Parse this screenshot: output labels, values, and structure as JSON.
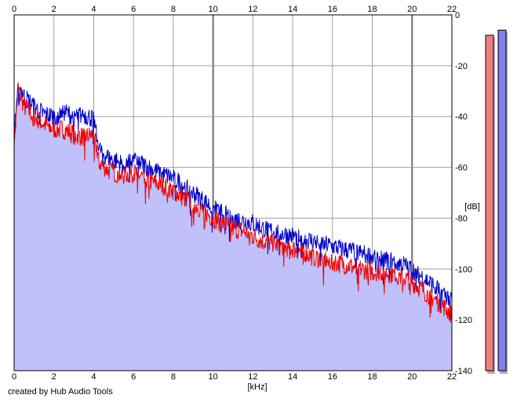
{
  "footer": {
    "credit": "created by Hub Audio Tools"
  },
  "chart_data": {
    "type": "line",
    "title": "",
    "xlabel": "[kHz]",
    "ylabel": "[dB]",
    "xlim": [
      0,
      22
    ],
    "ylim": [
      -140,
      0
    ],
    "x_ticks": [
      0,
      2,
      4,
      6,
      8,
      10,
      12,
      14,
      16,
      18,
      20,
      22
    ],
    "y_ticks": [
      0,
      -20,
      -40,
      -60,
      -80,
      -100,
      -120,
      -140
    ],
    "grid": true,
    "series": [
      {
        "color": "#0000cc",
        "x": [
          0,
          0.2,
          0.5,
          1,
          1.5,
          2,
          2.5,
          3,
          3.5,
          4,
          4.3,
          4.7,
          5,
          5.5,
          6,
          6.5,
          7,
          7.5,
          8,
          8.5,
          9,
          9.5,
          10,
          10.5,
          11,
          11.5,
          12,
          12.5,
          13,
          13.5,
          14,
          14.5,
          15,
          15.5,
          16,
          16.5,
          17,
          17.5,
          18,
          18.5,
          19,
          19.5,
          20,
          20.5,
          21,
          21.5,
          22
        ],
        "values": [
          -48,
          -26,
          -32,
          -36,
          -39,
          -40,
          -38,
          -40,
          -39,
          -41,
          -53,
          -56,
          -57,
          -59,
          -57,
          -59,
          -61,
          -63,
          -64,
          -67,
          -70,
          -73,
          -76,
          -78,
          -80,
          -81,
          -82,
          -84,
          -85,
          -86,
          -87,
          -88,
          -89,
          -90,
          -91,
          -92,
          -93,
          -94,
          -95,
          -96,
          -97,
          -98,
          -100,
          -103,
          -106,
          -109,
          -112
        ]
      },
      {
        "color": "#ee0000",
        "x": [
          0,
          0.2,
          0.5,
          1,
          1.5,
          2,
          2.5,
          3,
          3.5,
          4,
          4.3,
          4.7,
          5,
          5.5,
          6,
          6.5,
          7,
          7.5,
          8,
          8.5,
          9,
          9.5,
          10,
          10.5,
          11,
          11.5,
          12,
          12.5,
          13,
          13.5,
          14,
          14.5,
          15,
          15.5,
          16,
          16.5,
          17,
          17.5,
          18,
          18.5,
          19,
          19.5,
          20,
          20.5,
          21,
          21.5,
          22
        ],
        "values": [
          -50,
          -29,
          -36,
          -40,
          -43,
          -45,
          -45,
          -47,
          -48,
          -47,
          -58,
          -61,
          -62,
          -63,
          -62,
          -64,
          -66,
          -67,
          -69,
          -72,
          -74,
          -77,
          -80,
          -82,
          -84,
          -85,
          -87,
          -89,
          -90,
          -91,
          -92,
          -93,
          -95,
          -96,
          -97,
          -98,
          -99,
          -100,
          -101,
          -101,
          -102,
          -103,
          -105,
          -108,
          -111,
          -114,
          -118
        ]
      }
    ],
    "meters": [
      {
        "color": "#f08080",
        "level_db": -8
      },
      {
        "color": "#8080f0",
        "level_db": -6
      }
    ]
  }
}
